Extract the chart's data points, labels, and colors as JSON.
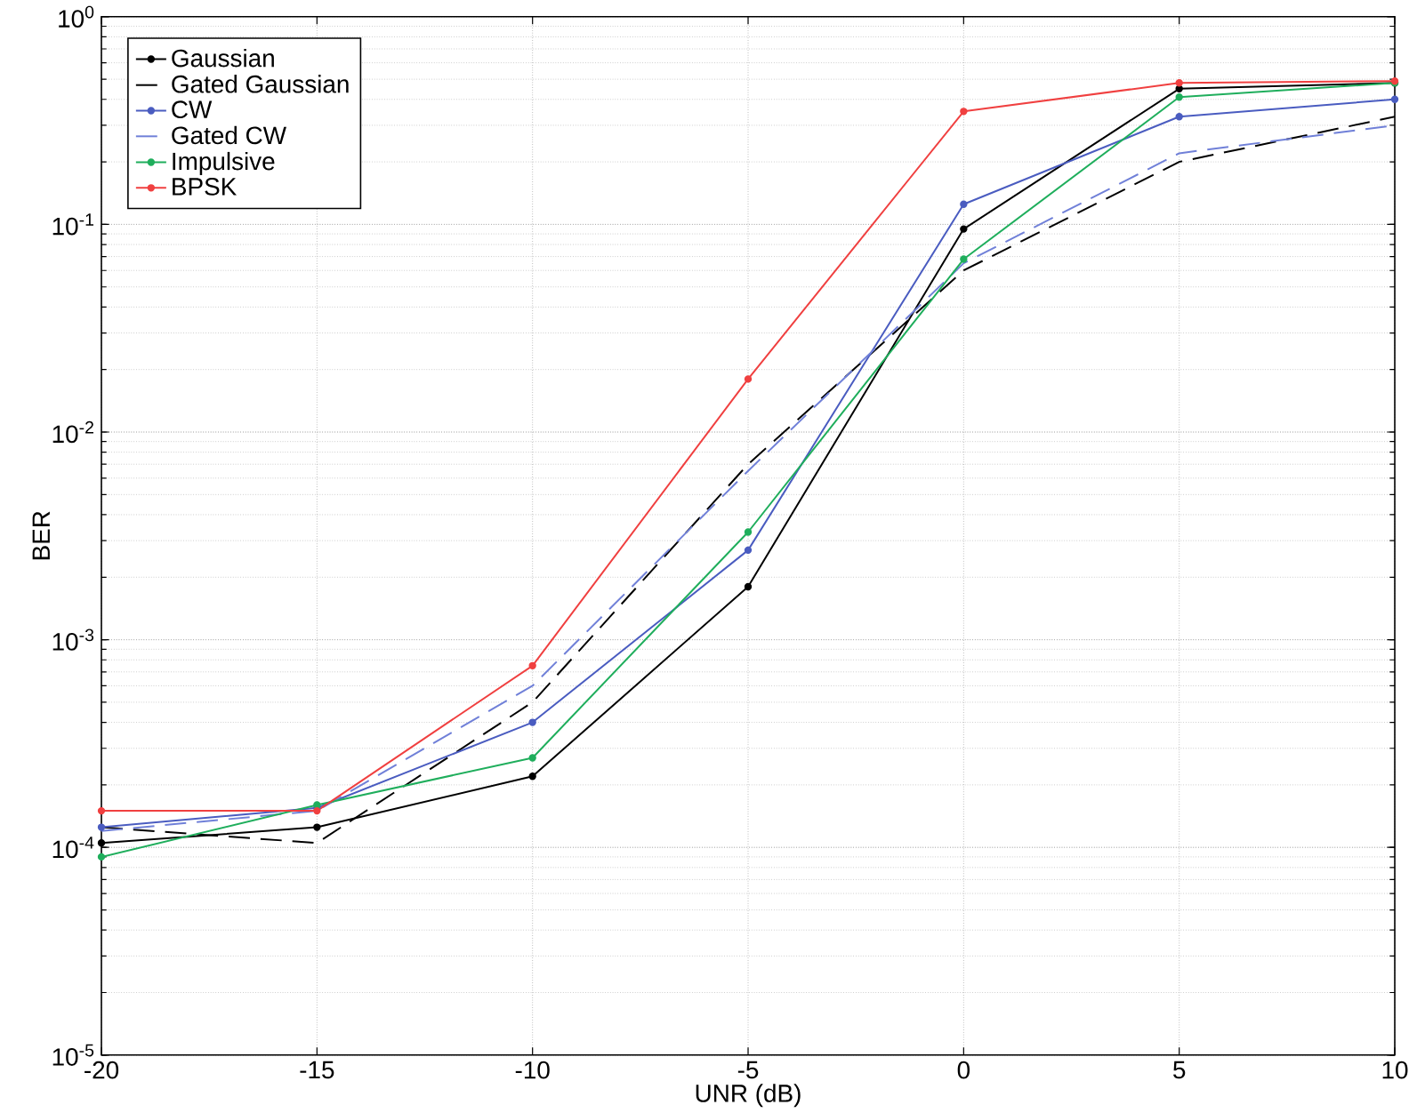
{
  "chart_data": {
    "type": "line",
    "xlabel": "UNR (dB)",
    "ylabel": "BER",
    "x": [
      -20,
      -15,
      -10,
      -5,
      0,
      5,
      10
    ],
    "series": [
      {
        "name": "Gaussian",
        "color": "#000000",
        "line_style": "solid",
        "marker": "circle",
        "values": [
          0.000105,
          0.000125,
          0.00022,
          0.0018,
          0.095,
          0.45,
          0.48
        ]
      },
      {
        "name": "Gated Gaussian",
        "color": "#000000",
        "line_style": "dashed",
        "marker": "none",
        "values": [
          0.000125,
          0.000105,
          0.0005,
          0.007,
          0.06,
          0.2,
          0.33
        ]
      },
      {
        "name": "CW",
        "color": "#4a5cc0",
        "line_style": "solid",
        "marker": "circle",
        "values": [
          0.000125,
          0.000155,
          0.0004,
          0.0027,
          0.125,
          0.33,
          0.4
        ]
      },
      {
        "name": "Gated CW",
        "color": "#7080d8",
        "line_style": "dashed",
        "marker": "none",
        "values": [
          0.00012,
          0.00015,
          0.0006,
          0.0065,
          0.065,
          0.22,
          0.3
        ]
      },
      {
        "name": "Impulsive",
        "color": "#1fae5c",
        "line_style": "solid",
        "marker": "circle",
        "values": [
          9e-05,
          0.00016,
          0.00027,
          0.0033,
          0.068,
          0.41,
          0.48
        ]
      },
      {
        "name": "BPSK",
        "color": "#f04040",
        "line_style": "solid",
        "marker": "circle",
        "values": [
          0.00015,
          0.00015,
          0.00075,
          0.018,
          0.35,
          0.48,
          0.49
        ]
      }
    ],
    "log": "y",
    "grid": true,
    "legend": "top left",
    "xlim": [
      -20,
      10
    ],
    "xticks": [
      -20,
      -15,
      -10,
      -5,
      0,
      5,
      10
    ],
    "ylim": [
      1e-05,
      1
    ],
    "yticks": [
      {
        "value": 1e-05,
        "label": "10$^{-5}$"
      },
      {
        "value": 0.0001,
        "label": "10$^{-4}$"
      },
      {
        "value": 0.001,
        "label": "10$^{-3}$"
      },
      {
        "value": 0.01,
        "label": "10$^{-2}$"
      },
      {
        "value": 0.1,
        "label": "10$^{-1}$"
      },
      {
        "value": 1,
        "label": "10$^{0}$"
      }
    ]
  }
}
